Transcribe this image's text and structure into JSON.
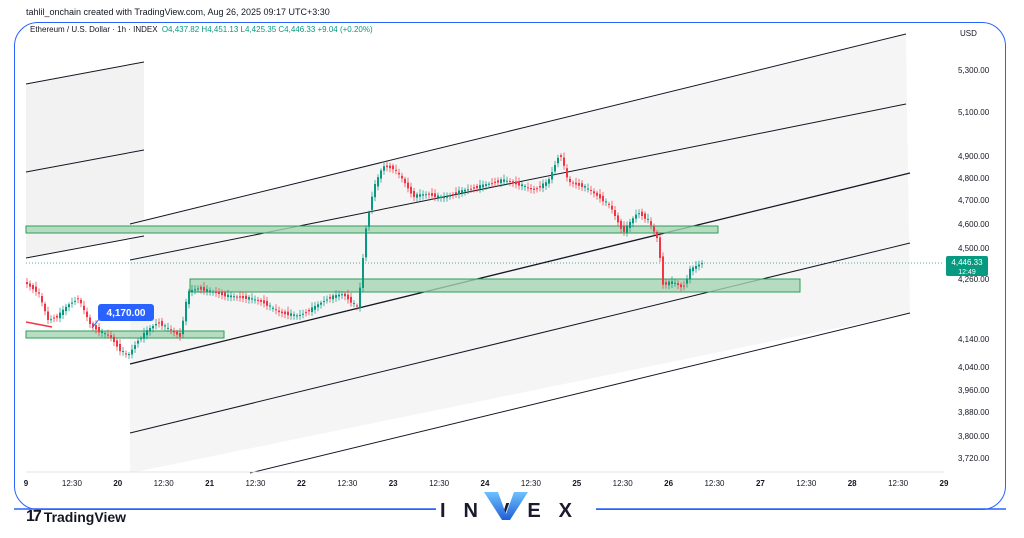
{
  "header": {
    "credit": "tahlil_onchain created with TradingView.com, Aug 26, 2025 09:17 UTC+3:30",
    "symbol": "Ethereum / U.S. Dollar · 1h · INDEX",
    "ohlc": "O4,437.82  H4,451.13  L4,425.35  C4,446.33  +9.04 (+0.20%)"
  },
  "price_axis": {
    "currency": "USD",
    "ticks": [
      "5,300.00",
      "5,100.00",
      "4,900.00",
      "4,800.00",
      "4,700.00",
      "4,600.00",
      "4,500.00",
      "4,260.00",
      "4,140.00",
      "4,040.00",
      "3,960.00",
      "3,880.00",
      "3,800.00",
      "3,720.00"
    ],
    "current_price": "4,446.33",
    "countdown": "12:49"
  },
  "time_axis": {
    "ticks": [
      "9",
      "12:30",
      "20",
      "12:30",
      "21",
      "12:30",
      "22",
      "12:30",
      "23",
      "12:30",
      "24",
      "12:30",
      "25",
      "12:30",
      "26",
      "12:30",
      "27",
      "12:30",
      "28",
      "12:30",
      "29"
    ]
  },
  "annotation": {
    "price_label": "4,170.00"
  },
  "branding": {
    "tradingview": "TradingView",
    "invex": "INVEX"
  },
  "colors": {
    "up": "#089981",
    "down": "#f23645",
    "zone_fill": "#a5d6b4",
    "zone_border": "#2e9e5a",
    "accent": "#2962ff"
  }
}
